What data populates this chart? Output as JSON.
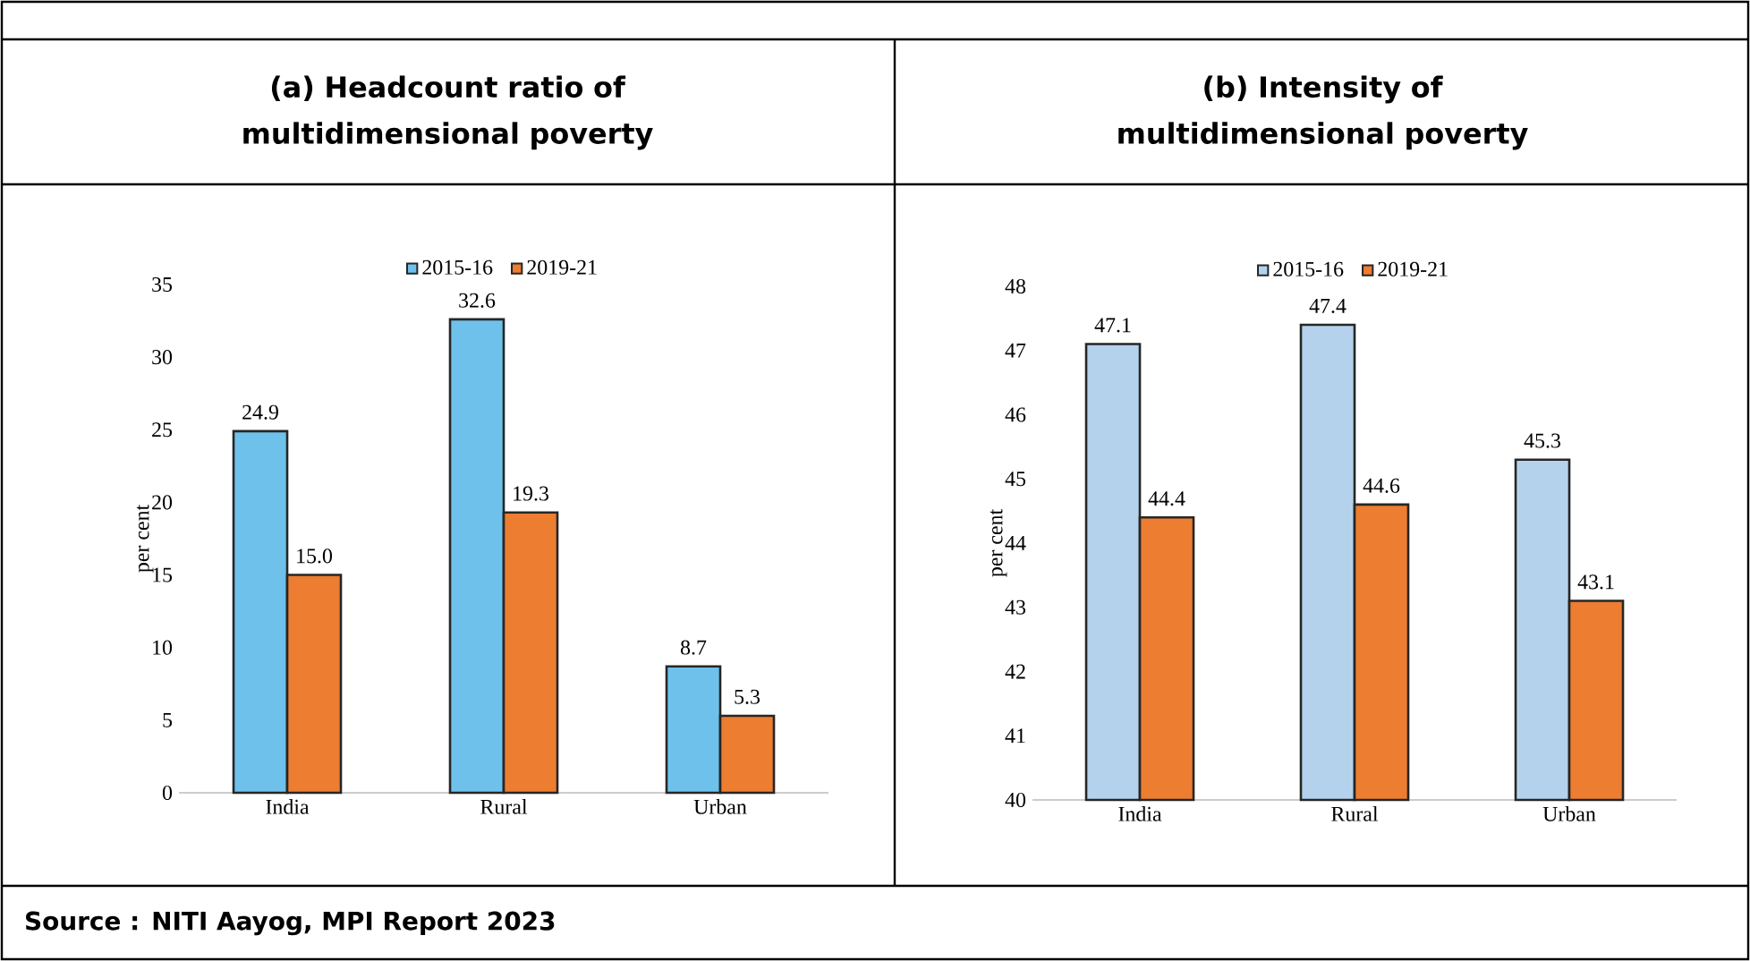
{
  "chart_data": [
    {
      "type": "bar",
      "title": "(a) Headcount ratio of multidimensional poverty",
      "categories": [
        "India",
        "Rural",
        "Urban"
      ],
      "ylabel": "per cent",
      "ylim": [
        0,
        35
      ],
      "yticks": [
        0,
        5,
        10,
        15,
        20,
        25,
        30,
        35
      ],
      "legend": "top",
      "annotations": [
        "Source : NITI Aayog, MPI Report 2023"
      ],
      "series": [
        {
          "name": "2015-16",
          "color": "#6ec1ea",
          "values": [
            24.9,
            32.6,
            8.7
          ],
          "value_labels": [
            "24.9",
            "32.6",
            "8.7"
          ]
        },
        {
          "name": "2019-21",
          "color": "#ed7d31",
          "values": [
            15.0,
            19.3,
            5.3
          ],
          "value_labels": [
            "15.0",
            "19.3",
            "5.3"
          ]
        }
      ]
    },
    {
      "type": "bar",
      "title": "(b) Intensity of multidimensional poverty",
      "categories": [
        "India",
        "Rural",
        "Urban"
      ],
      "ylabel": "per cent",
      "ylim": [
        40,
        48
      ],
      "yticks": [
        40,
        41,
        42,
        43,
        44,
        45,
        46,
        47,
        48
      ],
      "legend": "top",
      "series": [
        {
          "name": "2015-16",
          "color": "#b4d2ec",
          "values": [
            47.1,
            47.4,
            45.3
          ],
          "value_labels": [
            "47.1",
            "47.4",
            "45.3"
          ]
        },
        {
          "name": "2019-21",
          "color": "#ed7d31",
          "values": [
            44.4,
            44.6,
            43.1
          ],
          "value_labels": [
            "44.4",
            "44.6",
            "43.1"
          ]
        }
      ]
    }
  ]
}
